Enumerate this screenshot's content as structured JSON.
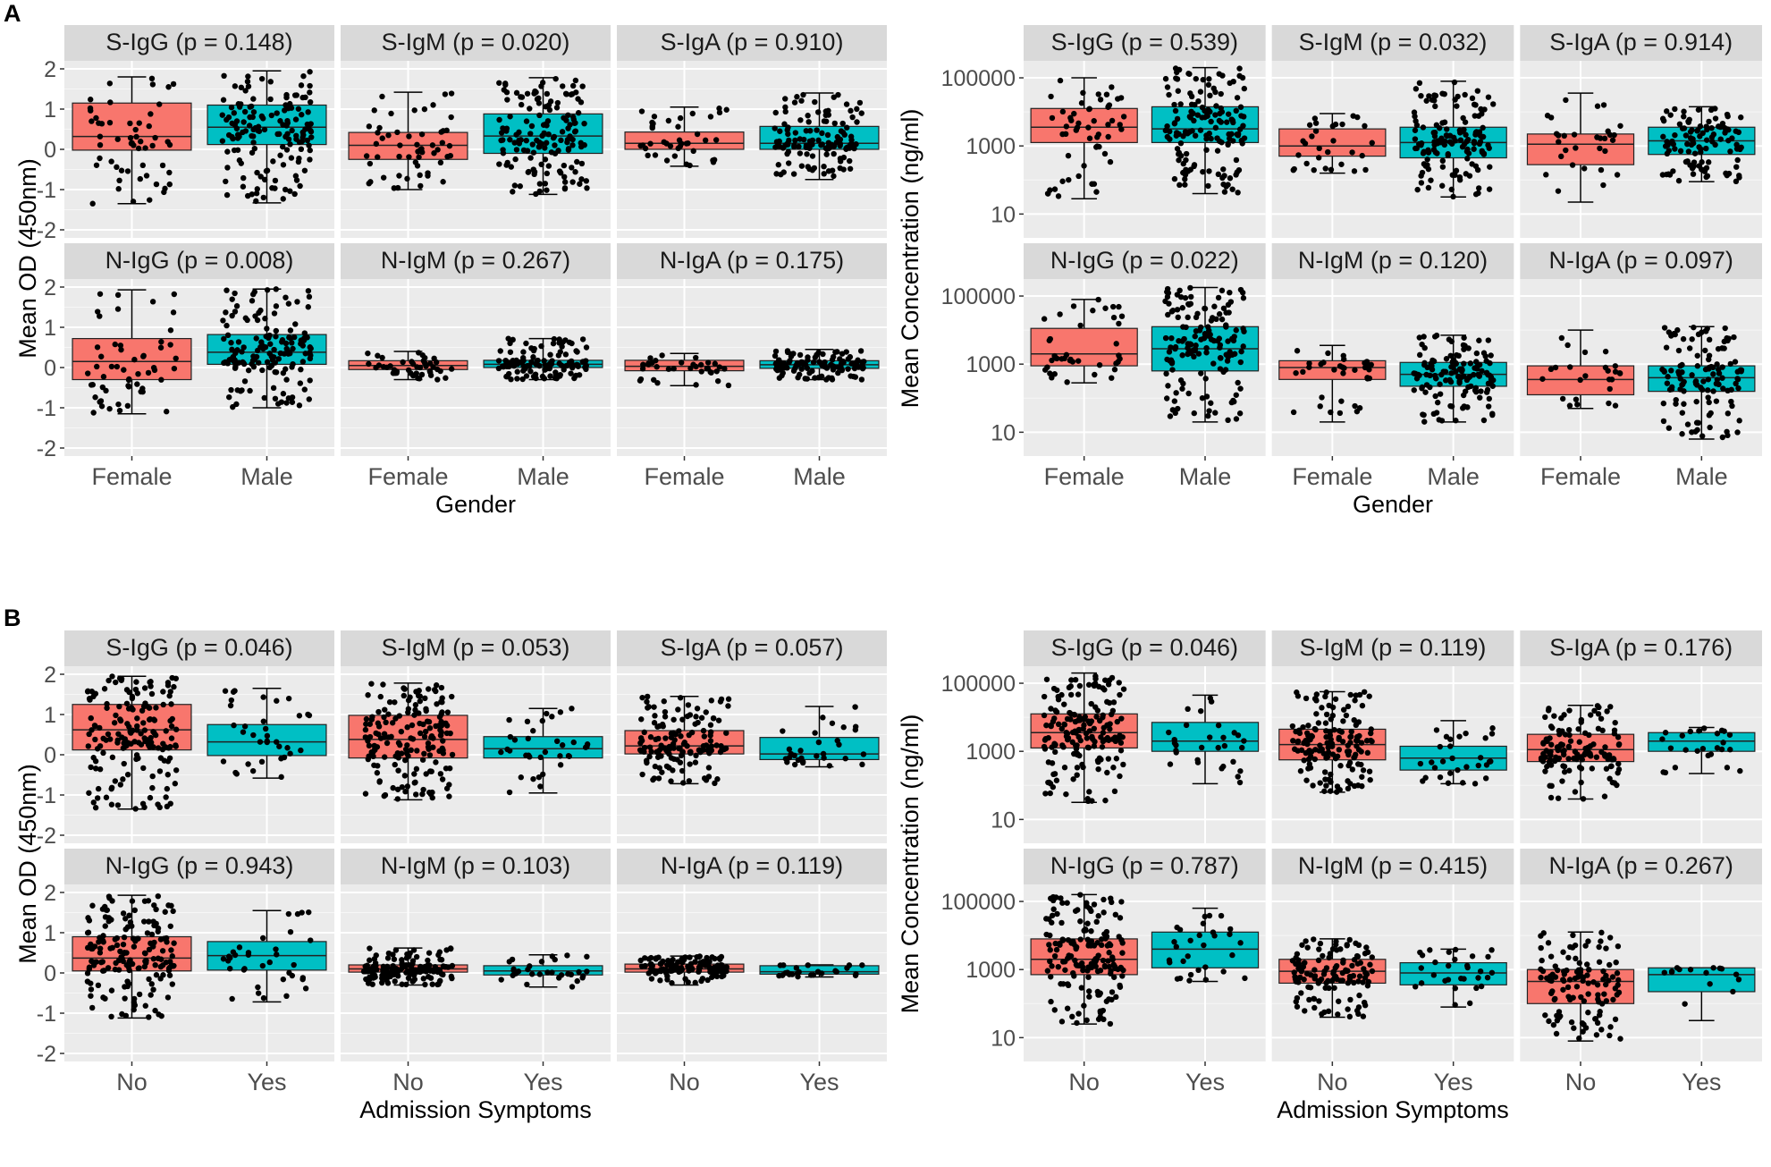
{
  "colors": {
    "background": "#ffffff",
    "panel_bg": "#ebebeb",
    "strip_bg": "#d9d9d9",
    "grid": "#ffffff",
    "group1_fill": "#f8766d",
    "group2_fill": "#00bfc4",
    "point": "#000000"
  },
  "chart_data": [
    {
      "id": "A",
      "label": "A",
      "scale": "linear",
      "type": "box",
      "y_title": "Mean OD (450nm)",
      "x_title": "Gender",
      "categories": [
        "Female",
        "Male"
      ],
      "ylim": [
        -2.2,
        2.2
      ],
      "ticks": [
        -2,
        -1,
        0,
        1,
        2
      ],
      "tick_labels": [
        "-2",
        "-1",
        "0",
        "1",
        "2"
      ],
      "facets": [
        {
          "title": "S-IgG (p = 0.148)",
          "boxes": [
            {
              "group": "Female",
              "whisker_low": -1.35,
              "q1": -0.02,
              "median": 0.32,
              "q3": 1.15,
              "whisker_high": 1.8,
              "n_points": 55,
              "seed": 11
            },
            {
              "group": "Male",
              "whisker_low": -1.33,
              "q1": 0.12,
              "median": 0.55,
              "q3": 1.1,
              "whisker_high": 1.95,
              "n_points": 150,
              "seed": 12
            }
          ]
        },
        {
          "title": "S-IgM (p = 0.020)",
          "boxes": [
            {
              "group": "Female",
              "whisker_low": -1.0,
              "q1": -0.25,
              "median": 0.1,
              "q3": 0.42,
              "whisker_high": 1.42,
              "n_points": 55,
              "seed": 13
            },
            {
              "group": "Male",
              "whisker_low": -1.12,
              "q1": -0.1,
              "median": 0.33,
              "q3": 0.88,
              "whisker_high": 1.78,
              "n_points": 150,
              "seed": 14
            }
          ]
        },
        {
          "title": "S-IgA (p =  0.910)",
          "boxes": [
            {
              "group": "Female",
              "whisker_low": -0.42,
              "q1": 0.0,
              "median": 0.15,
              "q3": 0.43,
              "whisker_high": 1.05,
              "n_points": 40,
              "seed": 15
            },
            {
              "group": "Male",
              "whisker_low": -0.75,
              "q1": 0.0,
              "median": 0.15,
              "q3": 0.57,
              "whisker_high": 1.4,
              "n_points": 130,
              "seed": 16
            }
          ]
        },
        {
          "title": "N-IgG (p = 0.008)",
          "boxes": [
            {
              "group": "Female",
              "whisker_low": -1.15,
              "q1": -0.3,
              "median": 0.15,
              "q3": 0.72,
              "whisker_high": 1.93,
              "n_points": 55,
              "seed": 17
            },
            {
              "group": "Male",
              "whisker_low": -1.0,
              "q1": 0.08,
              "median": 0.38,
              "q3": 0.82,
              "whisker_high": 1.95,
              "n_points": 150,
              "seed": 18
            }
          ]
        },
        {
          "title": "N-IgM (p = 0.267)",
          "boxes": [
            {
              "group": "Female",
              "whisker_low": -0.3,
              "q1": -0.05,
              "median": 0.05,
              "q3": 0.17,
              "whisker_high": 0.4,
              "n_points": 45,
              "seed": 19
            },
            {
              "group": "Male",
              "whisker_low": -0.3,
              "q1": 0.0,
              "median": 0.08,
              "q3": 0.18,
              "whisker_high": 0.72,
              "n_points": 120,
              "seed": 20
            }
          ]
        },
        {
          "title": "N-IgA (p =  0.175)",
          "boxes": [
            {
              "group": "Female",
              "whisker_low": -0.45,
              "q1": -0.08,
              "median": 0.03,
              "q3": 0.18,
              "whisker_high": 0.35,
              "n_points": 35,
              "seed": 21
            },
            {
              "group": "Male",
              "whisker_low": -0.3,
              "q1": -0.02,
              "median": 0.07,
              "q3": 0.17,
              "whisker_high": 0.45,
              "n_points": 110,
              "seed": 22
            }
          ]
        }
      ]
    },
    {
      "id": "A2",
      "label": "",
      "scale": "log10",
      "type": "box",
      "y_title": "Mean Concentration (ng/ml)",
      "x_title": "Gender",
      "categories": [
        "Female",
        "Male"
      ],
      "ylim": [
        0.3,
        5.5
      ],
      "ticks": [
        1,
        3,
        5
      ],
      "tick_labels": [
        "10",
        "1000",
        "100000"
      ],
      "facets": [
        {
          "title": "S-IgG (p = 0.539)",
          "boxes": [
            {
              "group": "Female",
              "whisker_low": 1.45,
              "q1": 3.1,
              "median": 3.55,
              "q3": 4.1,
              "whisker_high": 5.0,
              "n_points": 55,
              "seed": 31
            },
            {
              "group": "Male",
              "whisker_low": 1.6,
              "q1": 3.1,
              "median": 3.5,
              "q3": 4.15,
              "whisker_high": 5.3,
              "n_points": 150,
              "seed": 32
            }
          ]
        },
        {
          "title": "S-IgM (p = 0.032)",
          "boxes": [
            {
              "group": "Female",
              "whisker_low": 2.2,
              "q1": 2.7,
              "median": 3.0,
              "q3": 3.5,
              "whisker_high": 3.95,
              "n_points": 30,
              "seed": 33
            },
            {
              "group": "Male",
              "whisker_low": 1.5,
              "q1": 2.65,
              "median": 3.1,
              "q3": 3.55,
              "whisker_high": 4.9,
              "n_points": 140,
              "seed": 34
            }
          ]
        },
        {
          "title": "S-IgA (p = 0.914)",
          "boxes": [
            {
              "group": "Female",
              "whisker_low": 1.35,
              "q1": 2.45,
              "median": 3.05,
              "q3": 3.35,
              "whisker_high": 4.55,
              "n_points": 30,
              "seed": 35
            },
            {
              "group": "Male",
              "whisker_low": 1.95,
              "q1": 2.75,
              "median": 3.15,
              "q3": 3.55,
              "whisker_high": 4.15,
              "n_points": 110,
              "seed": 36
            }
          ]
        },
        {
          "title": "N-IgG (p = 0.022)",
          "boxes": [
            {
              "group": "Female",
              "whisker_low": 2.45,
              "q1": 2.95,
              "median": 3.3,
              "q3": 4.05,
              "whisker_high": 4.9,
              "n_points": 40,
              "seed": 37
            },
            {
              "group": "Male",
              "whisker_low": 1.3,
              "q1": 2.8,
              "median": 3.45,
              "q3": 4.1,
              "whisker_high": 5.25,
              "n_points": 150,
              "seed": 38
            }
          ]
        },
        {
          "title": "N-IgM (p = 0.120)",
          "boxes": [
            {
              "group": "Female",
              "whisker_low": 1.3,
              "q1": 2.55,
              "median": 2.9,
              "q3": 3.1,
              "whisker_high": 3.55,
              "n_points": 35,
              "seed": 39
            },
            {
              "group": "Male",
              "whisker_low": 1.3,
              "q1": 2.35,
              "median": 2.7,
              "q3": 3.05,
              "whisker_high": 3.85,
              "n_points": 130,
              "seed": 40
            }
          ]
        },
        {
          "title": "N-IgA (p = 0.097)",
          "boxes": [
            {
              "group": "Female",
              "whisker_low": 1.7,
              "q1": 2.1,
              "median": 2.55,
              "q3": 2.95,
              "whisker_high": 4.0,
              "n_points": 25,
              "seed": 41
            },
            {
              "group": "Male",
              "whisker_low": 0.8,
              "q1": 2.2,
              "median": 2.6,
              "q3": 2.95,
              "whisker_high": 4.1,
              "n_points": 120,
              "seed": 42
            }
          ]
        }
      ]
    },
    {
      "id": "B",
      "label": "B",
      "scale": "linear",
      "type": "box",
      "y_title": "Mean OD (450nm)",
      "x_title": "Admission Symptoms",
      "categories": [
        "No",
        "Yes"
      ],
      "ylim": [
        -2.2,
        2.2
      ],
      "ticks": [
        -2,
        -1,
        0,
        1,
        2
      ],
      "tick_labels": [
        "-2",
        "-1",
        "0",
        "1",
        "2"
      ],
      "facets": [
        {
          "title": "S-IgG (p = 0.046)",
          "boxes": [
            {
              "group": "No",
              "whisker_low": -1.35,
              "q1": 0.12,
              "median": 0.62,
              "q3": 1.25,
              "whisker_high": 1.95,
              "n_points": 170,
              "seed": 51
            },
            {
              "group": "Yes",
              "whisker_low": -0.58,
              "q1": -0.02,
              "median": 0.32,
              "q3": 0.75,
              "whisker_high": 1.65,
              "n_points": 35,
              "seed": 52
            }
          ]
        },
        {
          "title": "S-IgM (p = 0.053)",
          "boxes": [
            {
              "group": "No",
              "whisker_low": -1.12,
              "q1": -0.08,
              "median": 0.38,
              "q3": 0.98,
              "whisker_high": 1.78,
              "n_points": 170,
              "seed": 53
            },
            {
              "group": "Yes",
              "whisker_low": -0.95,
              "q1": -0.08,
              "median": 0.15,
              "q3": 0.45,
              "whisker_high": 1.15,
              "n_points": 35,
              "seed": 54
            }
          ]
        },
        {
          "title": "S-IgA (p =  0.057)",
          "boxes": [
            {
              "group": "No",
              "whisker_low": -0.72,
              "q1": 0.02,
              "median": 0.22,
              "q3": 0.6,
              "whisker_high": 1.45,
              "n_points": 140,
              "seed": 55
            },
            {
              "group": "Yes",
              "whisker_low": -0.3,
              "q1": -0.12,
              "median": 0.02,
              "q3": 0.43,
              "whisker_high": 1.2,
              "n_points": 30,
              "seed": 56
            }
          ]
        },
        {
          "title": "N-IgG (p = 0.943)",
          "boxes": [
            {
              "group": "No",
              "whisker_low": -1.12,
              "q1": 0.05,
              "median": 0.37,
              "q3": 0.9,
              "whisker_high": 1.93,
              "n_points": 170,
              "seed": 57
            },
            {
              "group": "Yes",
              "whisker_low": -0.72,
              "q1": 0.07,
              "median": 0.43,
              "q3": 0.78,
              "whisker_high": 1.55,
              "n_points": 35,
              "seed": 58
            }
          ]
        },
        {
          "title": "N-IgM (p = 0.103)",
          "boxes": [
            {
              "group": "No",
              "whisker_low": -0.3,
              "q1": 0.02,
              "median": 0.1,
              "q3": 0.2,
              "whisker_high": 0.62,
              "n_points": 140,
              "seed": 59
            },
            {
              "group": "Yes",
              "whisker_low": -0.35,
              "q1": -0.05,
              "median": 0.05,
              "q3": 0.18,
              "whisker_high": 0.45,
              "n_points": 30,
              "seed": 60
            }
          ]
        },
        {
          "title": "N-IgA (p = 0.119)",
          "boxes": [
            {
              "group": "No",
              "whisker_low": -0.3,
              "q1": 0.02,
              "median": 0.1,
              "q3": 0.22,
              "whisker_high": 0.42,
              "n_points": 120,
              "seed": 61
            },
            {
              "group": "Yes",
              "whisker_low": -0.1,
              "q1": -0.03,
              "median": 0.03,
              "q3": 0.18,
              "whisker_high": 0.2,
              "n_points": 25,
              "seed": 62
            }
          ]
        }
      ]
    },
    {
      "id": "B2",
      "label": "",
      "scale": "log10",
      "type": "box",
      "y_title": "Mean Concentration (ng/ml)",
      "x_title": "Admission Symptoms",
      "categories": [
        "No",
        "Yes"
      ],
      "ylim": [
        0.3,
        5.5
      ],
      "ticks": [
        1,
        3,
        5
      ],
      "tick_labels": [
        "10",
        "1000",
        "100000"
      ],
      "facets": [
        {
          "title": "S-IgG (p = 0.046)",
          "boxes": [
            {
              "group": "No",
              "whisker_low": 1.5,
              "q1": 3.1,
              "median": 3.55,
              "q3": 4.1,
              "whisker_high": 5.3,
              "n_points": 170,
              "seed": 71
            },
            {
              "group": "Yes",
              "whisker_low": 2.05,
              "q1": 3.0,
              "median": 3.3,
              "q3": 3.85,
              "whisker_high": 4.65,
              "n_points": 30,
              "seed": 72
            }
          ]
        },
        {
          "title": "S-IgM (p = 0.119)",
          "boxes": [
            {
              "group": "No",
              "whisker_low": 1.8,
              "q1": 2.75,
              "median": 3.2,
              "q3": 3.65,
              "whisker_high": 4.75,
              "n_points": 150,
              "seed": 73
            },
            {
              "group": "Yes",
              "whisker_low": 2.05,
              "q1": 2.45,
              "median": 2.8,
              "q3": 3.15,
              "whisker_high": 3.9,
              "n_points": 30,
              "seed": 74
            }
          ]
        },
        {
          "title": "S-IgA (p = 0.176)",
          "boxes": [
            {
              "group": "No",
              "whisker_low": 1.6,
              "q1": 2.7,
              "median": 3.05,
              "q3": 3.5,
              "whisker_high": 4.35,
              "n_points": 130,
              "seed": 75
            },
            {
              "group": "Yes",
              "whisker_low": 2.35,
              "q1": 3.0,
              "median": 3.3,
              "q3": 3.55,
              "whisker_high": 3.7,
              "n_points": 25,
              "seed": 76
            }
          ]
        },
        {
          "title": "N-IgG (p = 0.787)",
          "boxes": [
            {
              "group": "No",
              "whisker_low": 1.4,
              "q1": 2.85,
              "median": 3.3,
              "q3": 3.9,
              "whisker_high": 5.2,
              "n_points": 170,
              "seed": 77
            },
            {
              "group": "Yes",
              "whisker_low": 2.65,
              "q1": 3.05,
              "median": 3.6,
              "q3": 4.1,
              "whisker_high": 4.8,
              "n_points": 30,
              "seed": 78
            }
          ]
        },
        {
          "title": "N-IgM (p = 0.415)",
          "boxes": [
            {
              "group": "No",
              "whisker_low": 1.6,
              "q1": 2.6,
              "median": 2.95,
              "q3": 3.3,
              "whisker_high": 3.9,
              "n_points": 130,
              "seed": 79
            },
            {
              "group": "Yes",
              "whisker_low": 1.9,
              "q1": 2.55,
              "median": 2.9,
              "q3": 3.2,
              "whisker_high": 3.6,
              "n_points": 30,
              "seed": 80
            }
          ]
        },
        {
          "title": "N-IgA (p = 0.267)",
          "boxes": [
            {
              "group": "No",
              "whisker_low": 0.9,
              "q1": 2.0,
              "median": 2.65,
              "q3": 3.0,
              "whisker_high": 4.1,
              "n_points": 120,
              "seed": 81
            },
            {
              "group": "Yes",
              "whisker_low": 1.5,
              "q1": 2.35,
              "median": 2.85,
              "q3": 3.05,
              "whisker_high": 3.05,
              "n_points": 15,
              "seed": 82
            }
          ]
        }
      ]
    }
  ]
}
